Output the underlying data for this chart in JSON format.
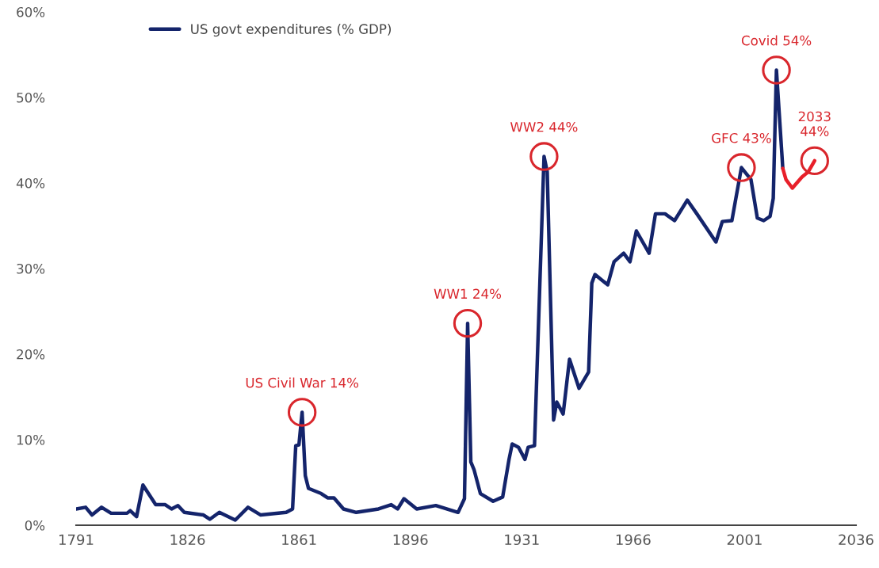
{
  "chart_data": {
    "type": "line",
    "series": [
      {
        "name": "US govt expenditures (% GDP)",
        "color": "#14246b",
        "x": [
          1791,
          1794,
          1796,
          1799,
          1802,
          1807,
          1808,
          1810,
          1812,
          1816,
          1819,
          1821,
          1823,
          1825,
          1831,
          1833,
          1836,
          1841,
          1845,
          1849,
          1857,
          1859,
          1860,
          1861,
          1862,
          1863,
          1864,
          1868,
          1870,
          1872,
          1875,
          1879,
          1886,
          1890,
          1892,
          1894,
          1898,
          1904,
          1911,
          1913,
          1914,
          1915,
          1916,
          1918,
          1922,
          1925,
          1927,
          1928,
          1930,
          1932,
          1933,
          1935,
          1938,
          1939,
          1941,
          1942,
          1944,
          1946,
          1949,
          1952,
          1953,
          1954,
          1958,
          1960,
          1963,
          1965,
          1967,
          1971,
          1973,
          1976,
          1979,
          1983,
          1986,
          1992,
          1994,
          1997,
          2000,
          2003,
          2005,
          2007,
          2009,
          2010,
          2011,
          2013
        ],
        "values": [
          1.9,
          2.1,
          1.2,
          2.1,
          1.4,
          1.4,
          1.7,
          1.0,
          4.7,
          2.4,
          2.4,
          1.9,
          2.3,
          1.5,
          1.2,
          0.7,
          1.5,
          0.6,
          2.1,
          1.2,
          1.5,
          1.9,
          9.3,
          9.4,
          13.2,
          5.8,
          4.3,
          3.7,
          3.2,
          3.2,
          1.9,
          1.5,
          1.9,
          2.4,
          1.9,
          3.1,
          1.9,
          2.3,
          1.5,
          3.1,
          23.6,
          7.4,
          6.5,
          3.7,
          2.8,
          3.3,
          7.7,
          9.5,
          9.1,
          7.7,
          9.1,
          9.3,
          43.1,
          41.3,
          12.3,
          14.4,
          13.0,
          19.4,
          16.0,
          17.9,
          28.3,
          29.3,
          28.1,
          30.8,
          31.8,
          30.8,
          34.4,
          31.8,
          36.4,
          36.4,
          35.6,
          38.0,
          36.4,
          33.1,
          35.5,
          35.6,
          41.8,
          40.4,
          35.9,
          35.6,
          36.1,
          38.2,
          53.2,
          41.7
        ]
      },
      {
        "color": "#e8202a",
        "x": [
          2013,
          2014,
          2016,
          2019,
          2021,
          2023
        ],
        "values": [
          41.7,
          40.4,
          39.4,
          40.7,
          41.3,
          42.6
        ]
      }
    ],
    "xlim": [
      1791,
      2036
    ],
    "xticks": [
      1791,
      1826,
      1861,
      1896,
      1931,
      1966,
      2001,
      2036
    ],
    "ylim": [
      0,
      60
    ],
    "yticks": [
      {
        "value": 0,
        "label": "0%"
      },
      {
        "value": 10,
        "label": "10%"
      },
      {
        "value": 20,
        "label": "20%"
      },
      {
        "value": 30,
        "label": "30%"
      },
      {
        "value": 40,
        "label": "40%"
      },
      {
        "value": 50,
        "label": "50%"
      },
      {
        "value": 60,
        "label": "60%"
      }
    ],
    "annotations": [
      {
        "text": "US Civil War 14%",
        "x": 1862,
        "y": 13.2
      },
      {
        "text": "WW1 24%",
        "x": 1914,
        "y": 23.6
      },
      {
        "text": "WW2 44%",
        "x": 1938,
        "y": 43.1
      },
      {
        "text": "GFC 43%",
        "x": 2000,
        "y": 41.8
      },
      {
        "text": "Covid 54%",
        "x": 2011,
        "y": 53.2
      },
      {
        "text": "2033\n44%",
        "x": 2023,
        "y": 42.6
      }
    ],
    "grid": false,
    "legend": "top left",
    "line_style": "solid",
    "marker": "none"
  }
}
